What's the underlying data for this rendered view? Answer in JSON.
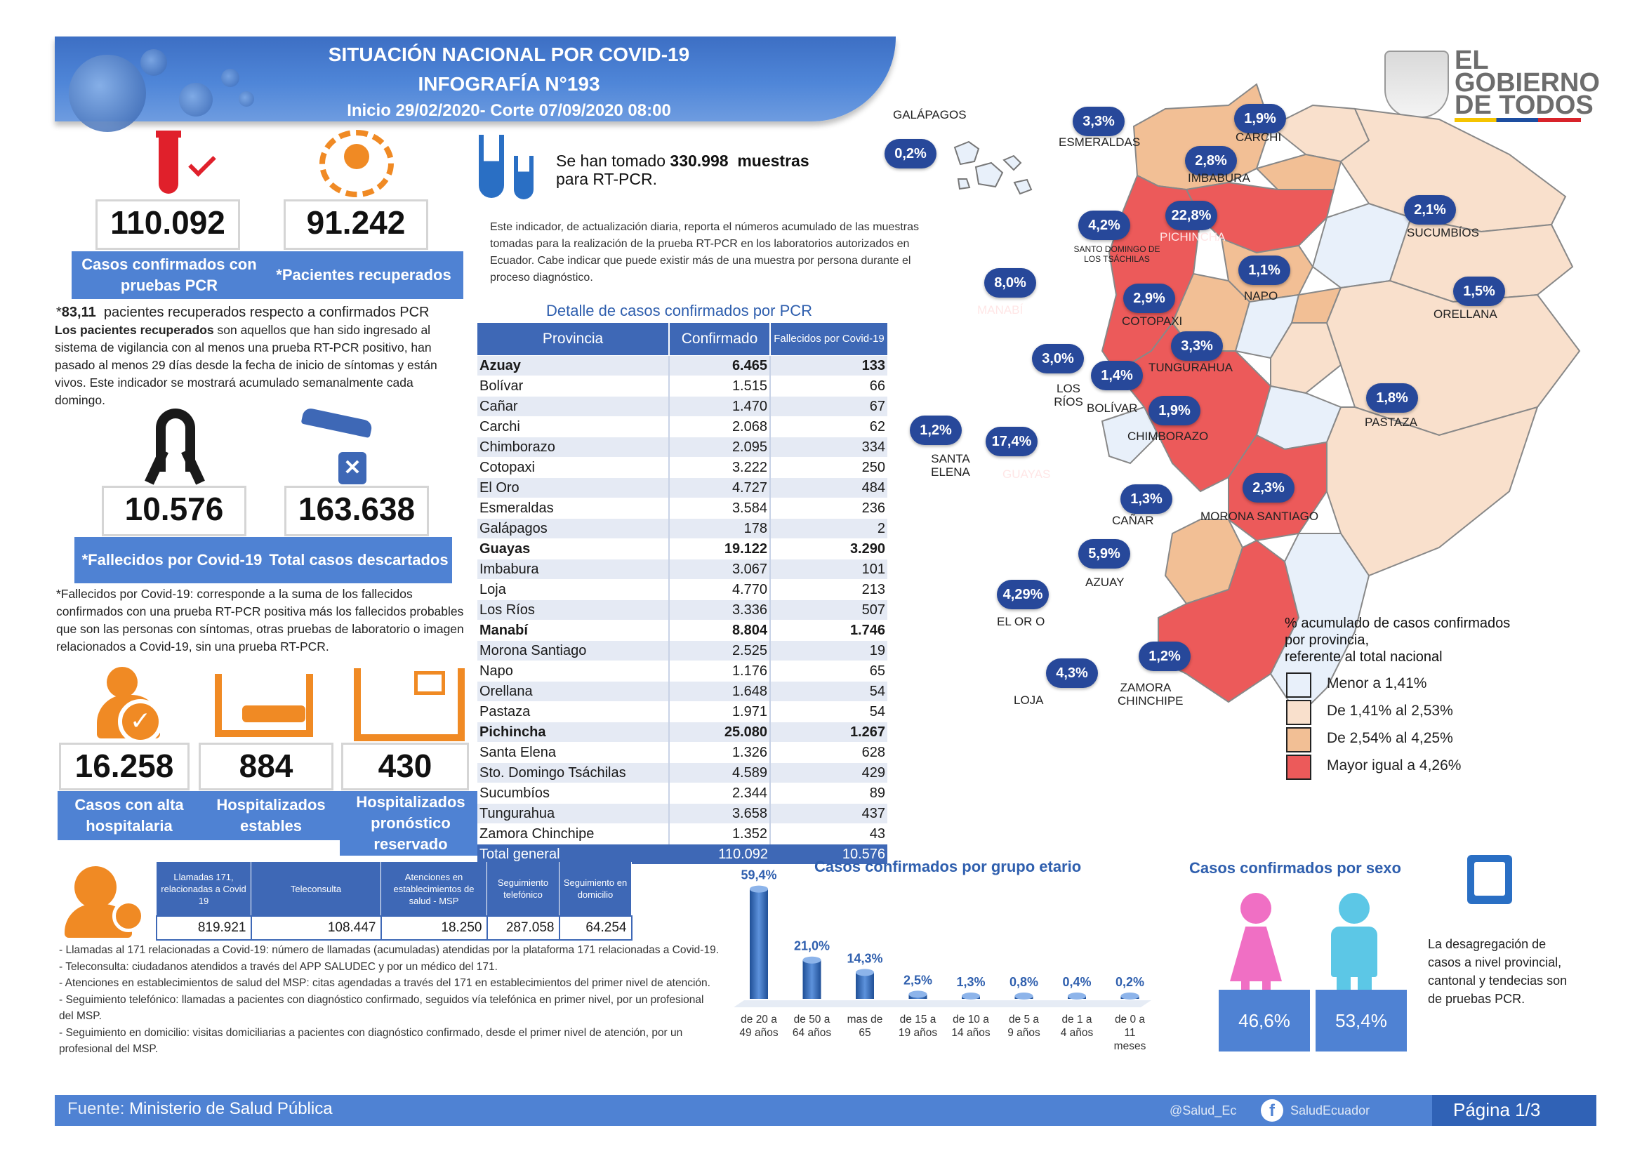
{
  "header": {
    "title": "SITUACIÓN NACIONAL POR  COVID-19",
    "subtitle": "INFOGRAFÍA N°193",
    "period": "Inicio 29/02/2020- Corte 07/09/2020 08:00"
  },
  "logo": {
    "line1": "EL",
    "line2": "GOBIERNO",
    "line3": "DE TODOS"
  },
  "kpis": {
    "confirmed": {
      "value": "110.092",
      "label": "Casos confirmados con pruebas PCR"
    },
    "recovered": {
      "value": "91.242",
      "label": "*Pacientes recuperados"
    },
    "recovered_ratio_value": "83,11",
    "recovered_ratio_text": "pacientes recuperados respecto a confirmados PCR",
    "recovered_note_bold": "Los pacientes recuperados",
    "recovered_note": "son aquellos que han sido ingresado al sistema de vigilancia con al menos una prueba RT-PCR positivo, han pasado al menos 29 días desde la fecha de inicio de síntomas y están vivos. Este indicador se mostrará acumulado semanalmente cada domingo.",
    "deaths": {
      "value": "10.576",
      "label": "*Fallecidos por Covid-19"
    },
    "discarded": {
      "value": "163.638",
      "label": "Total casos descartados"
    },
    "deaths_note_bold": "*Fallecidos por Covid-19",
    "deaths_note": ": corresponde a la suma de los fallecidos confirmados con una prueba RT-PCR positiva más los fallecidos probables que son las personas con síntomas, otras pruebas de laboratorio o imagen relacionados a Covid-19, sin una prueba RT-PCR.",
    "discharged": {
      "value": "16.258",
      "label": "Casos con alta hospitalaria"
    },
    "stable": {
      "value": "884",
      "label": "Hospitalizados estables"
    },
    "reserved": {
      "value": "430",
      "label": "Hospitalizados pronóstico reservado"
    }
  },
  "samples": {
    "prefix": "Se han tomado",
    "count": "330.998",
    "suffix": "muestras",
    "line2": "para RT-PCR.",
    "note": "Este indicador, de actualización diaria, reporta el números acumulado de las muestras tomadas para la realización de la prueba RT-PCR en los laboratorios autorizados en Ecuador. Cabe indicar que puede existir más de una muestra por persona durante el proceso diagnóstico."
  },
  "table": {
    "title": "Detalle de casos confirmados por PCR",
    "headers": [
      "Provincia",
      "Confirmado",
      "Fallecidos por Covid-19"
    ],
    "rows": [
      [
        "Azuay",
        "6.465",
        "133"
      ],
      [
        "Bolívar",
        "1.515",
        "66"
      ],
      [
        "Cañar",
        "1.470",
        "67"
      ],
      [
        "Carchi",
        "2.068",
        "62"
      ],
      [
        "Chimborazo",
        "2.095",
        "334"
      ],
      [
        "Cotopaxi",
        "3.222",
        "250"
      ],
      [
        "El Oro",
        "4.727",
        "484"
      ],
      [
        "Esmeraldas",
        "3.584",
        "236"
      ],
      [
        "Galápagos",
        "178",
        "2"
      ],
      [
        "Guayas",
        "19.122",
        "3.290"
      ],
      [
        "Imbabura",
        "3.067",
        "101"
      ],
      [
        "Loja",
        "4.770",
        "213"
      ],
      [
        "Los Ríos",
        "3.336",
        "507"
      ],
      [
        "Manabí",
        "8.804",
        "1.746"
      ],
      [
        "Morona Santiago",
        "2.525",
        "19"
      ],
      [
        "Napo",
        "1.176",
        "65"
      ],
      [
        "Orellana",
        "1.648",
        "54"
      ],
      [
        "Pastaza",
        "1.971",
        "54"
      ],
      [
        "Pichincha",
        "25.080",
        "1.267"
      ],
      [
        "Santa Elena",
        "1.326",
        "628"
      ],
      [
        "Sto. Domingo Tsáchilas",
        "4.589",
        "429"
      ],
      [
        "Sucumbíos",
        "2.344",
        "89"
      ],
      [
        "Tungurahua",
        "3.658",
        "437"
      ],
      [
        "Zamora Chinchipe",
        "1.352",
        "43"
      ]
    ],
    "total": [
      "Total general",
      "110.092",
      "10.576"
    ]
  },
  "map": {
    "provinces": [
      {
        "name": "ESMERALDAS",
        "pct": "3,3%"
      },
      {
        "name": "CARCHI",
        "pct": "1,9%"
      },
      {
        "name": "IMBABURA",
        "pct": "2,8%"
      },
      {
        "name": "GALÁPAGOS",
        "pct": "0,2%"
      },
      {
        "name": "PICHINCHA",
        "pct": "22,8%"
      },
      {
        "name": "SANTO DOMINGO DE LOS TSÁCHILAS",
        "pct": "4,2%"
      },
      {
        "name": "SUCUMBÍOS",
        "pct": "2,1%"
      },
      {
        "name": "MANABÍ",
        "pct": "8,0%"
      },
      {
        "name": "NAPO",
        "pct": "1,1%"
      },
      {
        "name": "ORELLANA",
        "pct": "1,5%"
      },
      {
        "name": "COTOPAXI",
        "pct": "2,9%"
      },
      {
        "name": "TUNGURAHUA",
        "pct": "3,3%"
      },
      {
        "name": "LOS RÍOS",
        "pct": "3,0%"
      },
      {
        "name": "BOLÍVAR",
        "pct": "1,4%"
      },
      {
        "name": "CHIMBORAZO",
        "pct": "1,9%"
      },
      {
        "name": "PASTAZA",
        "pct": "1,8%"
      },
      {
        "name": "SANTA ELENA",
        "pct": "1,2%"
      },
      {
        "name": "GUAYAS",
        "pct": "17,4%"
      },
      {
        "name": "CAÑAR",
        "pct": "1,3%"
      },
      {
        "name": "MORONA SANTIAGO",
        "pct": "2,3%"
      },
      {
        "name": "AZUAY",
        "pct": "5,9%"
      },
      {
        "name": "EL OR O",
        "pct": "4,29%"
      },
      {
        "name": "LOJA",
        "pct": "4,3%"
      },
      {
        "name": "ZAMORA CHINCHIPE",
        "pct": "1,2%"
      }
    ],
    "legend_title_1": "% acumulado de casos confirmados",
    "legend_title_2": "por provincia,",
    "legend_title_3": "referente al total nacional",
    "legend": [
      {
        "label": "Menor a 1,41%",
        "color": "#e8f0fa"
      },
      {
        "label": "De 1,41% al 2,53%",
        "color": "#f9e0cc"
      },
      {
        "label": "De 2,54% al 4,25%",
        "color": "#f2bf95"
      },
      {
        "label": "Mayor igual a 4,26%",
        "color": "#ec5a5a"
      }
    ]
  },
  "calls": {
    "headers": [
      "Llamadas 171, relacionadas a Covid 19",
      "Teleconsulta",
      "Atenciones en establecimientos de salud - MSP",
      "Seguimiento telefónico",
      "Seguimiento en domicilio"
    ],
    "values": [
      "819.921",
      "108.447",
      "18.250",
      "287.058",
      "64.254"
    ],
    "notes": [
      "- Llamadas al 171 relacionadas a Covid-19: número de llamadas (acumuladas) atendidas por la plataforma 171 relacionadas a Covid-19.",
      "- Teleconsulta: ciudadanos atendidos a través del APP SALUDEC y por un médico del 171.",
      "- Atenciones en establecimientos de salud del MSP:  citas agendadas a través del 171 en establecimientos del primer nivel de atención.",
      "- Seguimiento telefónico: llamadas a pacientes con diagnóstico confirmado, seguidos vía telefónica en primer nivel, por un profesional del MSP.",
      "- Seguimiento en domicilio: visitas domiciliarias a pacientes con diagnóstico confirmado, desde el primer nivel de atención, por un profesional del MSP."
    ]
  },
  "chart_data": {
    "type": "bar",
    "title": "Casos confirmados por grupo etario",
    "categories": [
      "de 20 a 49 años",
      "de 50 a 64 años",
      "mas de 65",
      "de 15 a 19 años",
      "de 10 a 14 años",
      "de 5 a 9 años",
      "de 1 a 4 años",
      "de 0 a 11 meses"
    ],
    "values": [
      59.4,
      21.0,
      14.3,
      2.5,
      1.3,
      0.8,
      0.4,
      0.2
    ],
    "value_labels": [
      "59,4%",
      "21,0%",
      "14,3%",
      "2,5%",
      "1,3%",
      "0,8%",
      "0,4%",
      "0,2%"
    ],
    "xlabel": "",
    "ylabel": "",
    "ylim": [
      0,
      60
    ]
  },
  "sex": {
    "title": "Casos confirmados por sexo",
    "female": "46,6%",
    "male": "53,4%",
    "note": "La desagregación de casos a nivel provincial, cantonal y tendecias son  de pruebas PCR.",
    "female_color": "#f06fc4",
    "male_color": "#5cc7e6"
  },
  "footer": {
    "source_prefix": "Fuente:",
    "source": "Ministerio de Salud Pública",
    "twitter": "@Salud_Ec",
    "facebook": "SaludEcuador",
    "page": "Página 1/3"
  },
  "colors": {
    "accent": "#4f82d3",
    "dark_blue": "#27489a",
    "red": "#e0202b",
    "orange": "#f08a24"
  }
}
